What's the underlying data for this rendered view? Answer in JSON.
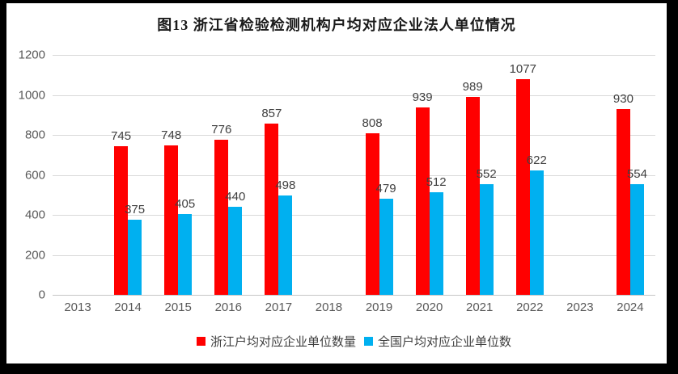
{
  "frame": {
    "border_color": "#000000",
    "background": "#ffffff"
  },
  "chart_data": {
    "type": "bar",
    "title": "图13 浙江省检验检测机构户均对应企业法人单位情况",
    "categories": [
      "2013",
      "2014",
      "2015",
      "2016",
      "2017",
      "2018",
      "2019",
      "2020",
      "2021",
      "2022",
      "2023",
      "2024"
    ],
    "series": [
      {
        "name": "浙江户均对应企业单位数量",
        "key": "zhejiang",
        "color": "#ff0000",
        "values": [
          null,
          745,
          748,
          776,
          857,
          null,
          808,
          939,
          989,
          1077,
          null,
          930
        ]
      },
      {
        "name": "全国户均对应企业单位数",
        "key": "national",
        "color": "#00b0f0",
        "values": [
          null,
          375,
          405,
          440,
          498,
          null,
          479,
          512,
          552,
          622,
          null,
          554
        ]
      }
    ],
    "xlabel": "",
    "ylabel": "",
    "ylim": [
      0,
      1200
    ],
    "yticks": [
      0,
      200,
      400,
      600,
      800,
      1000,
      1200
    ],
    "grid": "horizontal",
    "gridline_color": "#d9d9d9",
    "legend_position": "bottom",
    "data_labels": true,
    "label_color": "#404040",
    "axis_text_color": "#595959"
  }
}
